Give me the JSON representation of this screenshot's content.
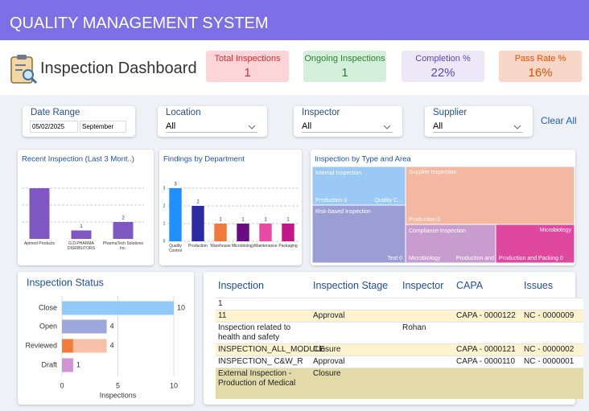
{
  "header": {
    "title": "QUALITY MANAGEMENT SYSTEM",
    "subtitle": "Inspection Dashboard"
  },
  "kpis": [
    {
      "label": "Total Inspections",
      "value": "1",
      "color": "#d32f2f",
      "background": "#fdd5d8"
    },
    {
      "label": "Ongoing Inspections",
      "value": "1",
      "color": "#2e7d32",
      "background": "#d4f0db"
    },
    {
      "label": "Completion %",
      "value": "22%",
      "color": "#5a48b0",
      "background": "#ece8f8"
    },
    {
      "label": "Pass Rate %",
      "value": "16%",
      "color": "#e65100",
      "background": "#f9d7c8"
    }
  ],
  "filters": {
    "date_range": {
      "label": "Date Range",
      "from": "05/02/2025",
      "to": "September"
    },
    "selects": [
      {
        "label": "Location",
        "value": "All"
      },
      {
        "label": "Inspector",
        "value": "All"
      },
      {
        "label": "Supplier",
        "value": "All"
      }
    ],
    "clear": "Clear All"
  },
  "chart_data": [
    {
      "type": "bar",
      "title": "Recent Inspection (Last 3 Mont..)",
      "categories": [
        "Apimed Products",
        "G.D.PHARMA DISRIBUTORS",
        "PharmaTech Solutions Inc."
      ],
      "values": [
        6,
        1,
        2
      ],
      "color": "#7e57c2",
      "ylim": [
        0,
        6
      ],
      "yticks": [
        2,
        4,
        6
      ],
      "grid": true,
      "show_tick_labels": false
    },
    {
      "type": "bar",
      "title": "Findings by Department",
      "categories": [
        "Quality Control",
        "Production",
        "Warehouse",
        "Microbiology",
        "Maintenance",
        "Packaging"
      ],
      "values": [
        3,
        2,
        1,
        1,
        1,
        1
      ],
      "colors": [
        "#1e90ff",
        "#2b2ca3",
        "#f07a3a",
        "#6a0d83",
        "#e84aa6",
        "#c2188b"
      ],
      "ylim": [
        0,
        3.2
      ],
      "yticks": [
        0,
        1,
        2,
        3
      ],
      "grid": true,
      "show_tick_labels": true
    },
    {
      "type": "treemap",
      "title": "Inspection by Type and Area",
      "tiles": [
        {
          "label": "Internal Inspection",
          "color": "#99c9f4",
          "items": [
            "Production 0",
            "Quality C..."
          ]
        },
        {
          "label": "Risk-based Inspection",
          "color": "#9a9ed4",
          "items": [
            "Test 0"
          ]
        },
        {
          "label": "Supplier Inspection",
          "color": "#f4b7a2",
          "items": [
            "Production 0"
          ]
        },
        {
          "label": "Compliance Inspection",
          "color": "#c89ccf",
          "items": [
            "Microbiology",
            "Production and"
          ]
        },
        {
          "label": "Microbiology",
          "color": "#e0479e",
          "items": [
            "Production and Packing 0"
          ]
        }
      ]
    },
    {
      "type": "hbar",
      "title": "Inspection Status",
      "categories": [
        "Close",
        "Open",
        "Reviewed",
        "Draft"
      ],
      "series": [
        {
          "values": [
            10,
            4,
            1,
            1
          ],
          "colors": [
            "#90caf9",
            "#9fa8da",
            "#f07d3a",
            "#cf94d4"
          ]
        },
        {
          "values": [
            null,
            null,
            3,
            null
          ],
          "color": "#f7c1a9"
        }
      ],
      "totals": [
        10,
        4,
        4,
        1
      ],
      "xlim": [
        0,
        10
      ],
      "xticks": [
        0,
        5,
        10
      ],
      "xlabel": "Inspections",
      "grid": true
    }
  ],
  "table": {
    "columns": [
      "Inspection",
      "Inspection Stage",
      "Inspector",
      "CAPA",
      "Issues"
    ],
    "rows": [
      [
        "1",
        null,
        null,
        null,
        null
      ],
      [
        "11",
        "Approval",
        null,
        "CAPA - 0000122",
        "NC - 0000009"
      ],
      [
        "Inspection related to health  and safety",
        null,
        "Rohan",
        null,
        null
      ],
      [
        "INSPECTION_ALL_MODULE",
        "Closure",
        null,
        "CAPA - 0000121",
        "NC - 0000002"
      ],
      [
        "INSPECTION_ C&W_R",
        "Approval",
        null,
        "CAPA - 0000110",
        "NC - 0000001"
      ],
      [
        "External Inspection - Production of Medical",
        "Closure",
        null,
        null,
        null
      ]
    ],
    "row_colors": [
      null,
      "#fdf3cf",
      null,
      "#fdf3cf",
      null,
      "#e2daa9"
    ]
  }
}
